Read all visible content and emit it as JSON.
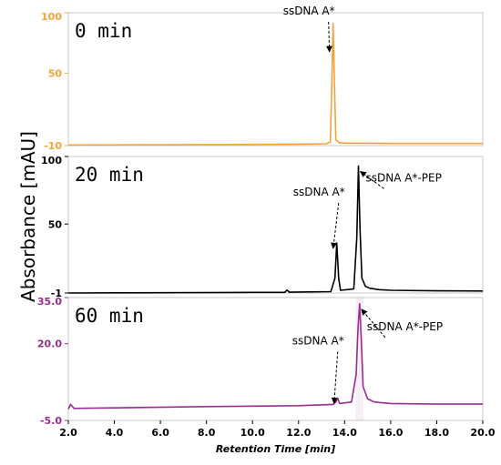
{
  "chart_data": {
    "type": "line",
    "xlabel": "Retention Time [min]",
    "ylabel": "Absorbance [mAU]",
    "xlim": [
      2.0,
      20.0
    ],
    "x_ticks": [
      "2.0",
      "4.0",
      "6.0",
      "8.0",
      "10.0",
      "12.0",
      "14.0",
      "16.0",
      "18.0",
      "20.0"
    ],
    "panels": [
      {
        "label": "0 min",
        "color": "#f5a23a",
        "ylim": [
          -10,
          100
        ],
        "y_ticks": [
          "100",
          "50",
          "-10"
        ],
        "series": [
          {
            "x": [
              2.0,
              6.0,
              10.0,
              12.0,
              13.2,
              13.38,
              13.44,
              13.5,
              13.56,
              13.62,
              13.75,
              14.0,
              16.0,
              18.0,
              20.0
            ],
            "y": [
              -9.5,
              -9.3,
              -9.0,
              -8.8,
              -8.5,
              -7.0,
              40.0,
              91.0,
              40.0,
              -5.0,
              -7.5,
              -8.0,
              -8.2,
              -8.2,
              -8.2
            ]
          }
        ],
        "annotations": [
          {
            "text": "ssDNA A*",
            "x": 13.5,
            "y": 91.0
          }
        ]
      },
      {
        "label": "20 min",
        "color": "#000000",
        "ylim": [
          -1,
          100
        ],
        "y_ticks": [
          "100",
          "50",
          "-1"
        ],
        "series": [
          {
            "x": [
              2.0,
              6.0,
              10.0,
              11.4,
              11.5,
              11.6,
              13.4,
              13.58,
              13.66,
              13.74,
              13.82,
              14.4,
              14.53,
              14.6,
              14.67,
              14.75,
              14.9,
              15.1,
              15.5,
              16.0,
              18.0,
              20.0
            ],
            "y": [
              -1.0,
              -0.8,
              -0.5,
              -0.5,
              1.2,
              -0.4,
              0.0,
              10.0,
              36.0,
              10.0,
              1.0,
              2.0,
              40.0,
              93.0,
              45.0,
              10.0,
              4.0,
              2.5,
              1.5,
              1.0,
              0.6,
              0.5
            ]
          }
        ],
        "annotations": [
          {
            "text": "ssDNA A*",
            "x": 13.66,
            "y": 36.0
          },
          {
            "text": "ssDNA A*-PEP",
            "x": 14.6,
            "y": 93.0
          }
        ]
      },
      {
        "label": "60 min",
        "color": "#9b2c8f",
        "ylim": [
          -5.0,
          35.0
        ],
        "y_ticks": [
          "35.0",
          "20.0",
          "-5.0"
        ],
        "series": [
          {
            "x": [
              2.0,
              2.1,
              2.25,
              4.0,
              8.0,
              12.0,
              13.5,
              13.62,
              13.7,
              13.78,
              14.3,
              14.5,
              14.58,
              14.65,
              14.72,
              14.8,
              15.0,
              15.3,
              16.0,
              18.0,
              20.0
            ],
            "y": [
              -1.3,
              0.2,
              -1.1,
              -0.9,
              -0.5,
              -0.2,
              0.2,
              1.0,
              2.3,
              0.5,
              1.0,
              10.0,
              25.0,
              33.0,
              22.0,
              6.0,
              2.0,
              1.0,
              0.5,
              0.3,
              0.3
            ]
          }
        ],
        "annotations": [
          {
            "text": "ssDNA A*",
            "x": 13.7,
            "y": 2.3
          },
          {
            "text": "ssDNA A*-PEP",
            "x": 14.65,
            "y": 33.0
          }
        ]
      }
    ]
  }
}
